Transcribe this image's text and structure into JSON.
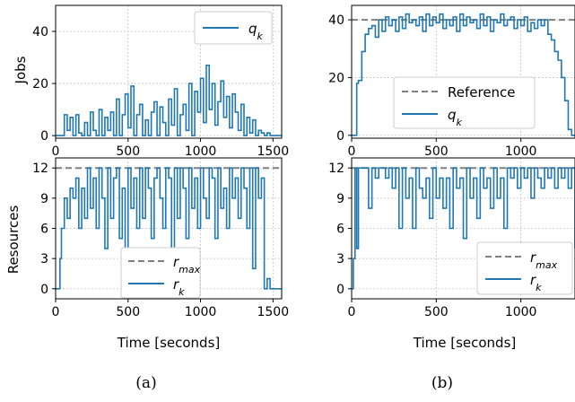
{
  "chart_data": [
    {
      "id": "a_top",
      "type": "line",
      "ylabel": "Jobs",
      "xlabel": "",
      "xlim": [
        0,
        1560
      ],
      "ylim": [
        -1,
        50
      ],
      "xticks": [
        0,
        500,
        1000,
        1500
      ],
      "yticks": [
        0,
        20,
        40
      ],
      "legend": {
        "placement": "top-right",
        "entries": [
          "q_k"
        ]
      },
      "series": [
        {
          "name": "q_k",
          "step": true,
          "x": [
            0,
            40,
            60,
            80,
            100,
            120,
            140,
            160,
            180,
            200,
            220,
            240,
            260,
            280,
            300,
            320,
            340,
            360,
            380,
            400,
            420,
            440,
            460,
            480,
            500,
            520,
            540,
            560,
            580,
            600,
            620,
            640,
            660,
            680,
            700,
            720,
            740,
            760,
            780,
            800,
            820,
            840,
            860,
            880,
            900,
            920,
            940,
            960,
            980,
            1000,
            1020,
            1040,
            1060,
            1080,
            1100,
            1120,
            1140,
            1160,
            1180,
            1200,
            1220,
            1240,
            1260,
            1280,
            1300,
            1320,
            1340,
            1360,
            1380,
            1400,
            1420,
            1440,
            1460,
            1480,
            1560
          ],
          "y": [
            0,
            0,
            8,
            2,
            7,
            0,
            8,
            1,
            0,
            5,
            0,
            9,
            2,
            0,
            10,
            0,
            7,
            2,
            9,
            0,
            14,
            0,
            8,
            16,
            3,
            19,
            0,
            8,
            12,
            0,
            6,
            0,
            9,
            13,
            0,
            11,
            5,
            0,
            14,
            4,
            18,
            0,
            8,
            12,
            2,
            20,
            0,
            17,
            9,
            22,
            5,
            27,
            10,
            20,
            4,
            13,
            21,
            7,
            15,
            3,
            16,
            9,
            2,
            12,
            0,
            7,
            1,
            6,
            0,
            2,
            1,
            0,
            1,
            0,
            0
          ]
        }
      ]
    },
    {
      "id": "a_bottom",
      "type": "line",
      "ylabel": "Resources",
      "xlabel": "Time [seconds]",
      "xlim": [
        0,
        1560
      ],
      "ylim": [
        -1,
        13
      ],
      "xticks": [
        0,
        500,
        1000,
        1500
      ],
      "yticks": [
        0,
        3,
        6,
        9,
        12
      ],
      "legend": {
        "placement": "lower-center",
        "entries": [
          "r_max",
          "r_k"
        ]
      },
      "reference": {
        "name": "r_max",
        "value": 12
      },
      "series": [
        {
          "name": "r_k",
          "step": true,
          "x": [
            0,
            30,
            40,
            60,
            80,
            100,
            120,
            140,
            160,
            180,
            200,
            220,
            240,
            260,
            280,
            300,
            320,
            340,
            360,
            380,
            400,
            420,
            440,
            460,
            480,
            500,
            520,
            540,
            560,
            580,
            600,
            620,
            640,
            660,
            680,
            700,
            720,
            740,
            760,
            780,
            800,
            820,
            840,
            860,
            880,
            900,
            920,
            940,
            960,
            980,
            1000,
            1020,
            1040,
            1060,
            1080,
            1100,
            1120,
            1140,
            1160,
            1180,
            1200,
            1220,
            1240,
            1260,
            1280,
            1300,
            1320,
            1340,
            1360,
            1380,
            1400,
            1420,
            1440,
            1460,
            1480,
            1560
          ],
          "y": [
            0,
            3,
            6,
            9,
            7,
            10,
            9,
            11,
            6,
            10,
            7,
            12,
            8,
            11,
            6,
            12,
            9,
            4,
            12,
            7,
            11,
            12,
            5,
            10,
            4,
            12,
            8,
            11,
            6,
            12,
            7,
            12,
            10,
            5,
            11,
            12,
            9,
            6,
            12,
            11,
            4,
            12,
            7,
            12,
            10,
            5,
            12,
            8,
            11,
            6,
            12,
            9,
            7,
            12,
            11,
            5,
            12,
            8,
            10,
            6,
            12,
            9,
            11,
            7,
            12,
            10,
            6,
            12,
            2,
            12,
            9,
            11,
            0,
            1,
            0,
            0
          ]
        }
      ]
    },
    {
      "id": "b_top",
      "type": "line",
      "ylabel": "",
      "xlabel": "",
      "xlim": [
        0,
        1320
      ],
      "ylim": [
        -1,
        45
      ],
      "xticks": [
        0,
        500,
        1000
      ],
      "yticks": [
        0,
        20,
        40
      ],
      "legend": {
        "placement": "lower-center",
        "entries": [
          "Reference",
          "q_k"
        ]
      },
      "reference": {
        "name": "Reference",
        "value": 40
      },
      "series": [
        {
          "name": "q_k",
          "step": true,
          "x": [
            0,
            30,
            40,
            60,
            80,
            100,
            120,
            140,
            160,
            180,
            200,
            220,
            240,
            260,
            280,
            300,
            320,
            340,
            360,
            380,
            400,
            420,
            440,
            460,
            480,
            500,
            520,
            540,
            560,
            580,
            600,
            620,
            640,
            660,
            680,
            700,
            720,
            740,
            760,
            780,
            800,
            820,
            840,
            860,
            880,
            900,
            920,
            940,
            960,
            980,
            1000,
            1020,
            1040,
            1060,
            1080,
            1100,
            1120,
            1140,
            1160,
            1180,
            1200,
            1220,
            1240,
            1260,
            1280,
            1300,
            1320
          ],
          "y": [
            0,
            18,
            19,
            29,
            35,
            37,
            38,
            34,
            40,
            36,
            41,
            38,
            40,
            36,
            41,
            37,
            42,
            39,
            40,
            38,
            41,
            36,
            42,
            38,
            41,
            39,
            42,
            37,
            40,
            38,
            41,
            36,
            42,
            38,
            41,
            39,
            40,
            37,
            42,
            38,
            41,
            36,
            40,
            39,
            42,
            38,
            40,
            41,
            37,
            40,
            38,
            41,
            36,
            39,
            37,
            40,
            38,
            40,
            35,
            33,
            29,
            26,
            20,
            12,
            2,
            0,
            0
          ]
        }
      ]
    },
    {
      "id": "b_bottom",
      "type": "line",
      "ylabel": "",
      "xlabel": "Time [seconds]",
      "xlim": [
        0,
        1320
      ],
      "ylim": [
        -1,
        13
      ],
      "xticks": [
        0,
        500,
        1000
      ],
      "yticks": [
        0,
        3,
        6,
        9,
        12
      ],
      "legend": {
        "placement": "lower-right",
        "entries": [
          "r_max",
          "r_k"
        ]
      },
      "reference": {
        "name": "r_max",
        "value": 12
      },
      "series": [
        {
          "name": "r_k",
          "step": true,
          "x": [
            0,
            10,
            20,
            30,
            40,
            60,
            80,
            100,
            120,
            140,
            160,
            180,
            200,
            220,
            240,
            260,
            280,
            300,
            320,
            340,
            360,
            380,
            400,
            420,
            440,
            460,
            480,
            500,
            520,
            540,
            560,
            580,
            600,
            620,
            640,
            660,
            680,
            700,
            720,
            740,
            760,
            780,
            800,
            820,
            840,
            860,
            880,
            900,
            920,
            940,
            960,
            980,
            1000,
            1020,
            1040,
            1060,
            1080,
            1100,
            1120,
            1140,
            1160,
            1180,
            1200,
            1220,
            1240,
            1260,
            1280,
            1300,
            1320
          ],
          "y": [
            0,
            3,
            12,
            4,
            12,
            12,
            12,
            8,
            12,
            11,
            12,
            12,
            11,
            12,
            10,
            12,
            6,
            12,
            9,
            11,
            6,
            12,
            10,
            9,
            11,
            7,
            12,
            9,
            11,
            8,
            11,
            6,
            12,
            10,
            11,
            5,
            12,
            9,
            11,
            7,
            12,
            10,
            11,
            8,
            12,
            9,
            11,
            6,
            12,
            11,
            12,
            10,
            12,
            11,
            12,
            9,
            12,
            11,
            10,
            12,
            11,
            12,
            10,
            12,
            11,
            12,
            10,
            12,
            4
          ]
        }
      ]
    }
  ],
  "captions": {
    "a": "(a)",
    "b": "(b)"
  }
}
